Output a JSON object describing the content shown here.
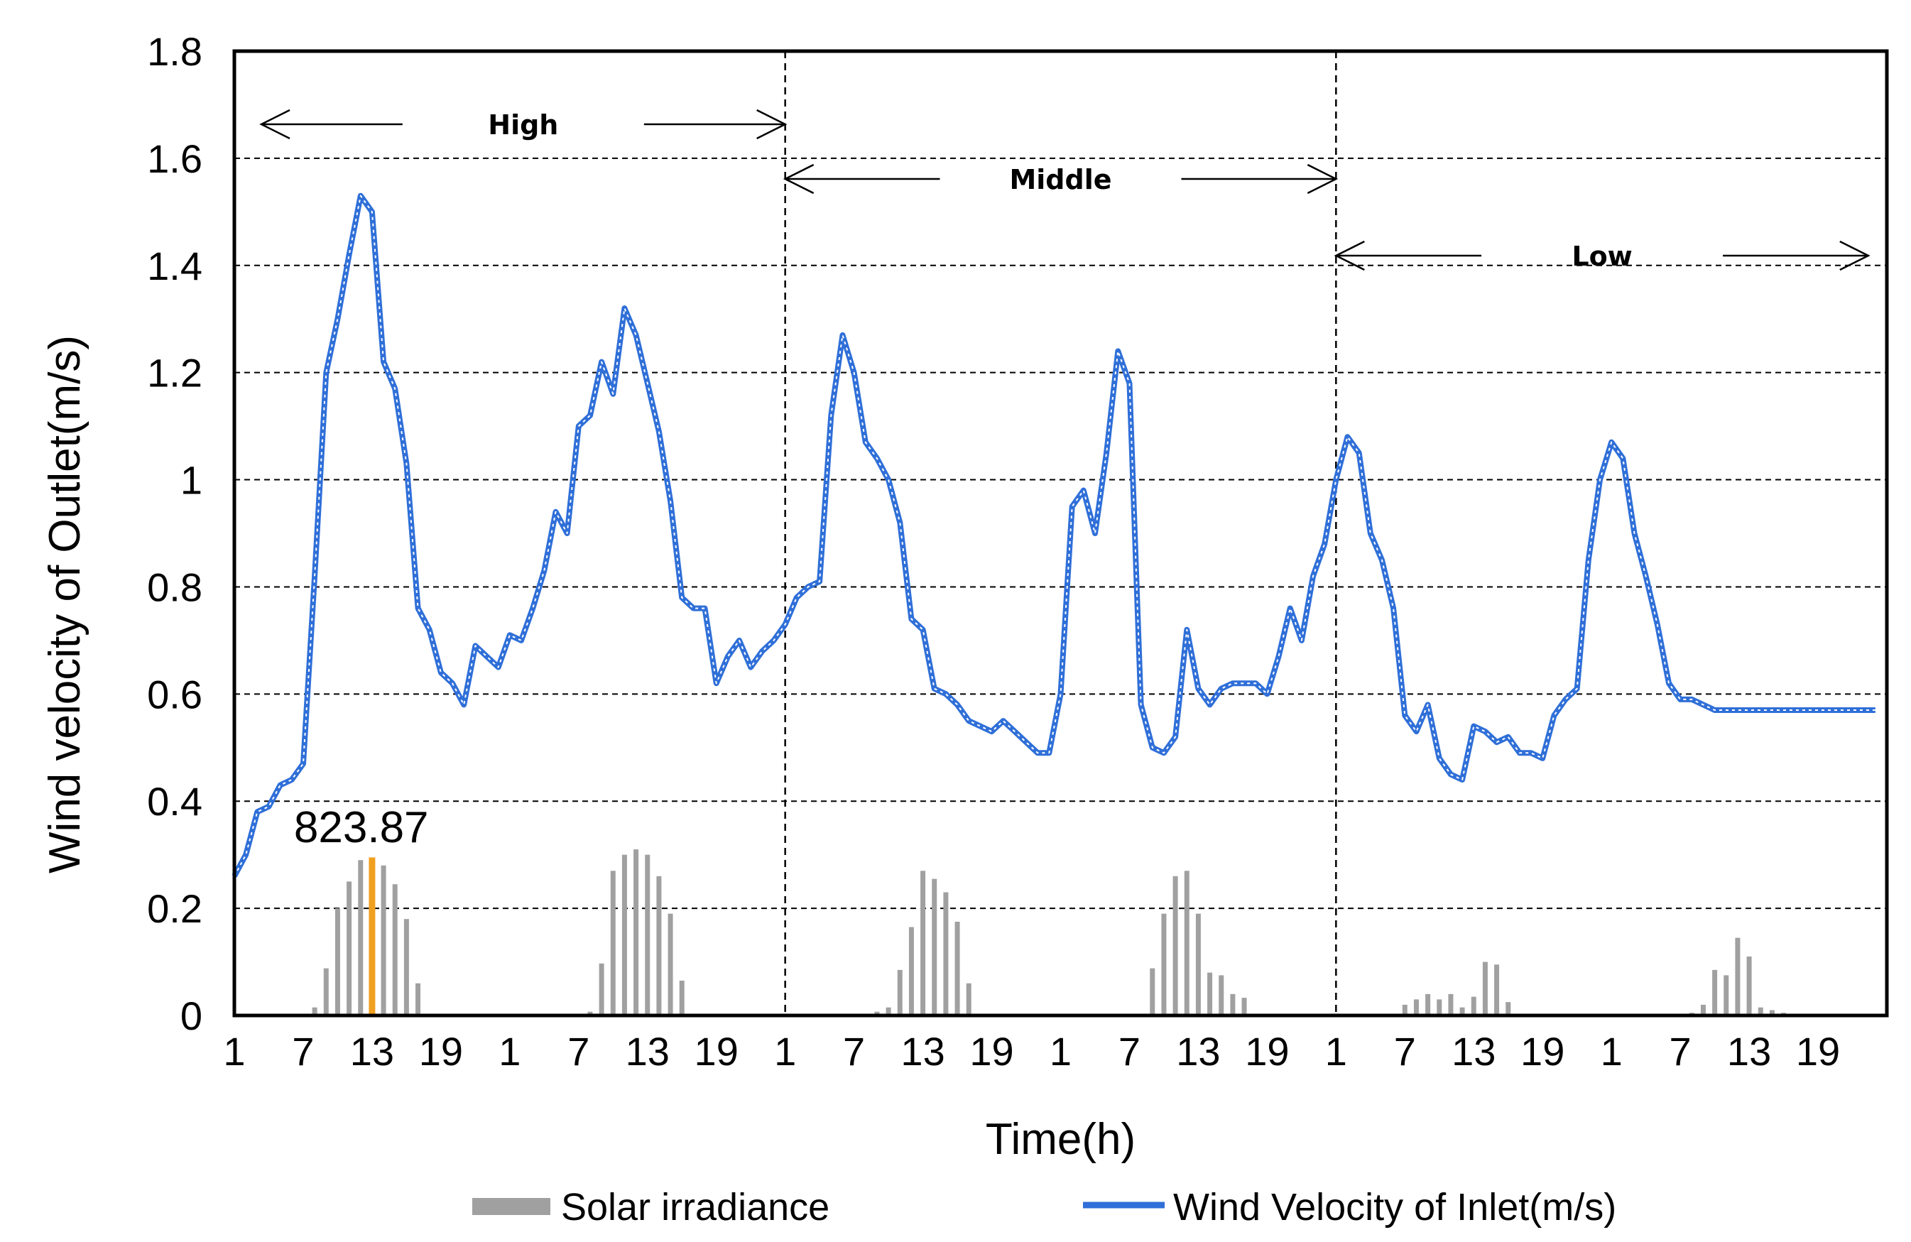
{
  "chart_data": {
    "type": "bar+line",
    "title": "",
    "xlabel": "Time(h)",
    "ylabel": "Wind velocity of Outlet(m/s)",
    "ylim": [
      0,
      1.8
    ],
    "y_ticks": [
      "0",
      "0.2",
      "0.4",
      "0.6",
      "0.8",
      "1",
      "1.2",
      "1.4",
      "1.6",
      "1.8"
    ],
    "x_range_hours": [
      1,
      144
    ],
    "x_tick_labels": [
      "1",
      "7",
      "13",
      "19",
      "1",
      "7",
      "13",
      "19",
      "1",
      "7",
      "13",
      "19",
      "1",
      "7",
      "13",
      "19",
      "1",
      "7",
      "13",
      "19",
      "1",
      "7",
      "13",
      "19"
    ],
    "grid": "horizontal dashed",
    "bands": [
      {
        "label": "High",
        "start_day": 1,
        "end_day": 2
      },
      {
        "label": "Middle",
        "start_day": 3,
        "end_day": 4
      },
      {
        "label": "Low",
        "start_day": 5,
        "end_day": 6
      }
    ],
    "annotation": {
      "text": "823.87",
      "hour": 13
    },
    "series": [
      {
        "name": "Solar irradiance",
        "kind": "bar",
        "color": "#a0a0a0",
        "highlight_color": "#f0a020",
        "highlight_hour": 13,
        "hours": [
          8,
          9,
          10,
          11,
          12,
          13,
          14,
          15,
          16,
          17,
          32,
          33,
          34,
          35,
          36,
          37,
          38,
          39,
          40,
          41,
          42,
          57,
          58,
          59,
          60,
          61,
          62,
          63,
          64,
          65,
          66,
          81,
          82,
          83,
          84,
          85,
          86,
          87,
          88,
          89,
          90,
          103,
          104,
          105,
          106,
          107,
          108,
          109,
          110,
          111,
          112,
          113,
          128,
          129,
          130,
          131,
          132,
          133,
          134,
          135,
          136,
          137
        ],
        "values": [
          0.015,
          0.088,
          0.2,
          0.25,
          0.29,
          0.295,
          0.28,
          0.245,
          0.18,
          0.06,
          0.007,
          0.097,
          0.27,
          0.3,
          0.31,
          0.3,
          0.26,
          0.19,
          0.065,
          0,
          0,
          0.007,
          0.015,
          0.085,
          0.165,
          0.27,
          0.255,
          0.23,
          0.175,
          0.06,
          0,
          0.088,
          0.19,
          0.26,
          0.27,
          0.19,
          0.08,
          0.075,
          0.04,
          0.033,
          0,
          0.02,
          0.03,
          0.04,
          0.03,
          0.04,
          0.015,
          0.035,
          0.1,
          0.095,
          0.025,
          0,
          0.005,
          0.02,
          0.085,
          0.075,
          0.145,
          0.11,
          0.015,
          0.01,
          0.005,
          0
        ]
      },
      {
        "name": "Wind Velocity of Inlet(m/s)",
        "kind": "line",
        "color": "#2f6fd8",
        "x": [
          1,
          2,
          3,
          4,
          5,
          6,
          7,
          8,
          9,
          10,
          11,
          12,
          13,
          14,
          15,
          16,
          17,
          18,
          19,
          20,
          21,
          22,
          23,
          24,
          25,
          26,
          27,
          28,
          29,
          30,
          31,
          32,
          33,
          34,
          35,
          36,
          37,
          38,
          39,
          40,
          41,
          42,
          43,
          44,
          45,
          46,
          47,
          48,
          49,
          50,
          51,
          52,
          53,
          54,
          55,
          56,
          57,
          58,
          59,
          60,
          61,
          62,
          63,
          64,
          65,
          66,
          67,
          68,
          69,
          70,
          71,
          72,
          73,
          74,
          75,
          76,
          77,
          78,
          79,
          80,
          81,
          82,
          83,
          84,
          85,
          86,
          87,
          88,
          89,
          90,
          91,
          92,
          93,
          94,
          95,
          96,
          97,
          98,
          99,
          100,
          101,
          102,
          103,
          104,
          105,
          106,
          107,
          108,
          109,
          110,
          111,
          112,
          113,
          114,
          115,
          116,
          117,
          118,
          119,
          120,
          121,
          122,
          123,
          124,
          125,
          126,
          127,
          128,
          129,
          130,
          131,
          132,
          133,
          134,
          135,
          136,
          137,
          138,
          139,
          140,
          141,
          142,
          143,
          144
        ],
        "y": [
          0.26,
          0.3,
          0.38,
          0.39,
          0.43,
          0.44,
          0.47,
          0.82,
          1.2,
          1.3,
          1.42,
          1.53,
          1.5,
          1.22,
          1.17,
          1.03,
          0.76,
          0.72,
          0.64,
          0.62,
          0.58,
          0.69,
          0.67,
          0.65,
          0.71,
          0.7,
          0.76,
          0.83,
          0.94,
          0.9,
          1.1,
          1.12,
          1.22,
          1.16,
          1.32,
          1.27,
          1.18,
          1.09,
          0.96,
          0.78,
          0.76,
          0.76,
          0.62,
          0.67,
          0.7,
          0.65,
          0.68,
          0.7,
          0.73,
          0.78,
          0.8,
          0.81,
          1.12,
          1.27,
          1.2,
          1.07,
          1.04,
          1.0,
          0.92,
          0.74,
          0.72,
          0.61,
          0.6,
          0.58,
          0.55,
          0.54,
          0.53,
          0.55,
          0.53,
          0.51,
          0.49,
          0.49,
          0.6,
          0.95,
          0.98,
          0.9,
          1.05,
          1.24,
          1.18,
          0.58,
          0.5,
          0.49,
          0.52,
          0.72,
          0.61,
          0.58,
          0.61,
          0.62,
          0.62,
          0.62,
          0.6,
          0.67,
          0.76,
          0.7,
          0.82,
          0.88,
          1.0,
          1.08,
          1.05,
          0.9,
          0.85,
          0.76,
          0.56,
          0.53,
          0.58,
          0.48,
          0.45,
          0.44,
          0.54,
          0.53,
          0.51,
          0.52,
          0.49,
          0.49,
          0.48,
          0.56,
          0.59,
          0.61,
          0.85,
          1.0,
          1.07,
          1.04,
          0.9,
          0.82,
          0.73,
          0.62,
          0.59,
          0.59,
          0.58,
          0.57,
          0.57,
          0.57,
          0.57,
          0.57,
          0.57,
          0.57,
          0.57,
          0.57,
          0.57,
          0.57,
          0.57,
          0.57,
          0.57,
          0.57
        ]
      }
    ]
  }
}
